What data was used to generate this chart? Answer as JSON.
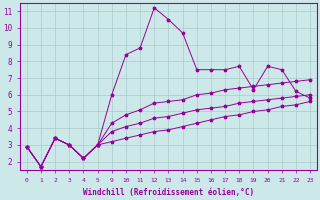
{
  "background_color": "#cce8e8",
  "grid_color": "#aacccc",
  "line_color": "#990099",
  "xlabel": "Windchill (Refroidissement éolien,°C)",
  "xlim": [
    -0.5,
    23.5
  ],
  "ylim": [
    1.5,
    11.5
  ],
  "yticks": [
    2,
    3,
    4,
    5,
    6,
    7,
    8,
    9,
    10,
    11
  ],
  "xticks": [
    0,
    1,
    2,
    3,
    4,
    5,
    9,
    10,
    11,
    12,
    13,
    14,
    15,
    16,
    17,
    18,
    19,
    20,
    21,
    22,
    23
  ],
  "x_positions": [
    0,
    1,
    2,
    3,
    4,
    5,
    6,
    7,
    8,
    9,
    10,
    11,
    12,
    13,
    14,
    15,
    16,
    17,
    18,
    19,
    20
  ],
  "x_labels": [
    0,
    1,
    2,
    3,
    4,
    5,
    9,
    10,
    11,
    12,
    13,
    14,
    15,
    16,
    17,
    18,
    19,
    20,
    21,
    22,
    23
  ],
  "series1": [
    2.9,
    1.7,
    3.4,
    3.0,
    2.2,
    3.0,
    6.0,
    8.4,
    8.8,
    11.2,
    10.5,
    9.7,
    7.5,
    7.5,
    7.5,
    7.7,
    6.3,
    7.7,
    7.5,
    6.2,
    5.8
  ],
  "series2": [
    2.9,
    1.7,
    3.4,
    3.0,
    2.2,
    3.0,
    4.3,
    4.8,
    5.1,
    5.5,
    5.6,
    5.7,
    6.0,
    6.1,
    6.3,
    6.4,
    6.5,
    6.6,
    6.7,
    6.8,
    6.9
  ],
  "series3": [
    2.9,
    1.7,
    3.4,
    3.0,
    2.2,
    3.0,
    3.8,
    4.1,
    4.3,
    4.6,
    4.7,
    4.9,
    5.1,
    5.2,
    5.3,
    5.5,
    5.6,
    5.7,
    5.8,
    5.9,
    6.0
  ],
  "series4": [
    2.9,
    1.7,
    3.4,
    3.0,
    2.2,
    3.0,
    3.2,
    3.4,
    3.6,
    3.8,
    3.9,
    4.1,
    4.3,
    4.5,
    4.7,
    4.8,
    5.0,
    5.1,
    5.3,
    5.4,
    5.6
  ]
}
